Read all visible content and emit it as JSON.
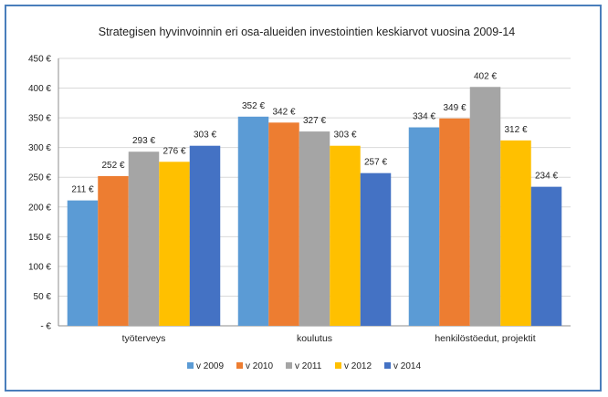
{
  "chart_data": {
    "type": "bar",
    "title": "Strategisen hyvinvoinnin eri osa-alueiden investointien keskiarvot vuosina 2009-14",
    "categories": [
      "työterveys",
      "koulutus",
      "henkilöstöedut, projektit"
    ],
    "series": [
      {
        "name": "v 2009",
        "color": "#5b9bd5",
        "values": [
          211,
          352,
          334
        ],
        "labels": [
          "211 €",
          "352 €",
          "334 €"
        ]
      },
      {
        "name": "v 2010",
        "color": "#ed7d31",
        "values": [
          252,
          342,
          349
        ],
        "labels": [
          "252 €",
          "342 €",
          "349 €"
        ]
      },
      {
        "name": "v 2011",
        "color": "#a5a5a5",
        "values": [
          293,
          327,
          402
        ],
        "labels": [
          "293 €",
          "327 €",
          "402 €"
        ]
      },
      {
        "name": "v 2012",
        "color": "#ffc000",
        "values": [
          276,
          303,
          312
        ],
        "labels": [
          "276 €",
          "303 €",
          "312 €"
        ]
      },
      {
        "name": "v 2014",
        "color": "#4472c4",
        "values": [
          303,
          257,
          234
        ],
        "labels": [
          "303 €",
          "257 €",
          "234 €"
        ]
      }
    ],
    "ylim": [
      0,
      450
    ],
    "yticks": [
      0,
      50,
      100,
      150,
      200,
      250,
      300,
      350,
      400,
      450
    ],
    "ytick_labels": [
      " -  €",
      "50 €",
      "100 €",
      "150 €",
      "200 €",
      "250 €",
      "300 €",
      "350 €",
      "400 €",
      "450 €"
    ],
    "xlabel": "",
    "ylabel": "",
    "legend_position": "bottom",
    "grid": true
  }
}
